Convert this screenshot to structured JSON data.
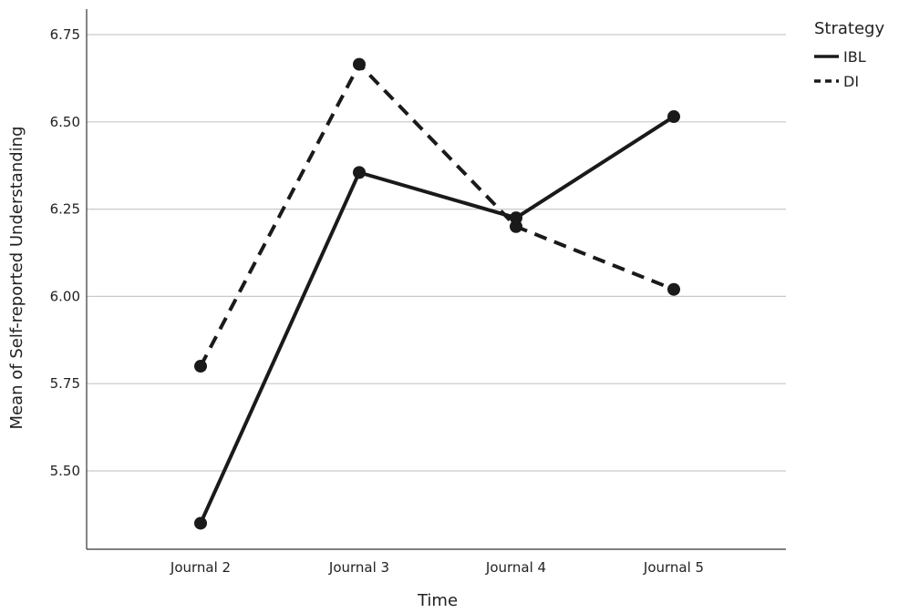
{
  "chart_data": {
    "type": "line",
    "categories": [
      "Journal 2",
      "Journal 3",
      "Journal 4",
      "Journal 5"
    ],
    "series": [
      {
        "name": "IBL",
        "values": [
          5.35,
          6.355,
          6.225,
          6.515
        ],
        "line_style": "solid"
      },
      {
        "name": "DI",
        "values": [
          5.8,
          6.665,
          6.2,
          6.02
        ],
        "line_style": "dashed"
      }
    ],
    "xlabel": "Time",
    "ylabel": "Mean of Self-reported Understanding",
    "ylim": [
      5.3,
      6.75
    ],
    "yticks": [
      "5.50",
      "5.75",
      "6.00",
      "6.25",
      "6.50",
      "6.75"
    ],
    "grid": true,
    "legend": {
      "title": "Strategy",
      "placement": "top-right"
    },
    "colors": {
      "line": "#1a1a1a",
      "grid": "#c9c9c9"
    }
  }
}
